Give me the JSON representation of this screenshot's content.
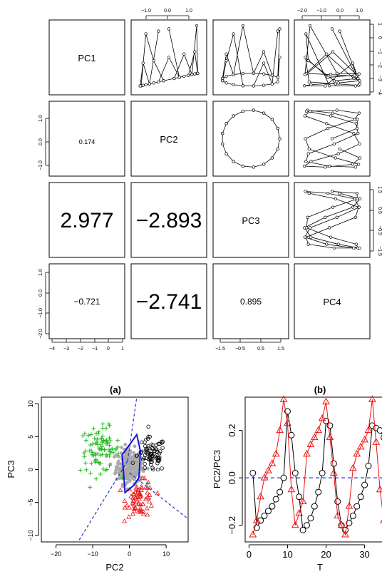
{
  "matrix": {
    "diag_labels": [
      "PC1",
      "PC2",
      "PC3",
      "PC4"
    ],
    "correlations": [
      {
        "row": 1,
        "col": 0,
        "text": "0.174",
        "size": 9
      },
      {
        "row": 2,
        "col": 0,
        "text": "2.977",
        "size": 30
      },
      {
        "row": 2,
        "col": 1,
        "text": "−2.893",
        "size": 30
      },
      {
        "row": 3,
        "col": 0,
        "text": "−0.721",
        "size": 12
      },
      {
        "row": 3,
        "col": 1,
        "text": "−2.741",
        "size": 30
      },
      {
        "row": 3,
        "col": 2,
        "text": "0.895",
        "size": 12
      }
    ],
    "top_axis_col1": [
      "−1.0",
      "0.0",
      "1.0"
    ],
    "top_axis_col3": [
      "−2.0",
      "−1.0",
      "0.0",
      "1.0"
    ],
    "right_axis_row0": [
      "1",
      "0",
      "−1",
      "−2",
      "−3",
      "−4"
    ],
    "right_axis_row2": [
      "1.5",
      "0.5",
      "−0.5",
      "−1.5"
    ],
    "left_axis_row1": [
      "1.0",
      "0.0",
      "−1.0"
    ],
    "left_axis_row3": [
      "1.0",
      "0.0",
      "−1.0",
      "−2.0"
    ],
    "bottom_axis_col0": [
      "−4",
      "−3",
      "−2",
      "−1",
      "0",
      "1"
    ],
    "bottom_axis_col2": [
      "−1.5",
      "−0.5",
      "0.5",
      "1.5"
    ]
  },
  "chart_data": [
    {
      "type": "scatter",
      "title": "(a)",
      "xlabel": "PC2",
      "ylabel": "PC3",
      "xlim": [
        -24,
        16
      ],
      "ylim": [
        -11,
        11
      ],
      "xticks": [
        "−20",
        "−10",
        "0",
        "10"
      ],
      "yticks": [
        "10",
        "5",
        "0",
        "−5",
        "−10"
      ],
      "groups": [
        {
          "marker": "plus",
          "color": "#22bb22",
          "n": 90,
          "center": [
            -8,
            3.0
          ],
          "spread": [
            4.5,
            2.8
          ]
        },
        {
          "marker": "circle",
          "color": "#000000",
          "n": 80,
          "center": [
            6,
            2.2
          ],
          "spread": [
            3.2,
            2.2
          ]
        },
        {
          "marker": "triangle",
          "color": "#ee1111",
          "n": 70,
          "center": [
            3,
            -4.5
          ],
          "spread": [
            3.2,
            2.2
          ]
        },
        {
          "marker": "dot",
          "color": "#aaaaaa",
          "n": 260,
          "center": [
            0,
            0.5
          ],
          "spread": [
            3.0,
            2.2
          ]
        }
      ],
      "hull_color": "#1111dd",
      "boundary_color": "#2233cc"
    },
    {
      "type": "line",
      "title": "(b)",
      "xlabel": "T",
      "ylabel": "PC2/PC3",
      "xlim": [
        -1,
        36
      ],
      "ylim": [
        -0.27,
        0.34
      ],
      "xticks": [
        "0",
        "10",
        "20",
        "30"
      ],
      "yticks": [
        "0.2",
        "0.0",
        "−0.2"
      ],
      "series": [
        {
          "marker": "circle",
          "color": "#000000",
          "x": [
            1,
            2,
            3,
            4,
            5,
            6,
            7,
            8,
            9,
            10,
            11,
            12,
            13,
            14,
            15,
            16,
            17,
            18,
            19,
            20,
            21,
            22,
            23,
            24,
            25,
            26,
            27,
            28,
            29,
            30,
            31,
            32,
            33,
            34,
            35
          ],
          "values": [
            0.02,
            -0.21,
            -0.18,
            -0.16,
            -0.14,
            -0.12,
            -0.09,
            -0.06,
            0.0,
            0.28,
            0.18,
            0.02,
            -0.08,
            -0.22,
            -0.2,
            -0.17,
            -0.12,
            -0.06,
            0.02,
            0.24,
            0.22,
            0.06,
            -0.1,
            -0.2,
            -0.22,
            -0.19,
            -0.16,
            -0.12,
            -0.08,
            -0.03,
            0.05,
            0.22,
            0.21,
            0.2,
            0.17
          ]
        },
        {
          "marker": "triangle",
          "color": "#ee1111",
          "x": [
            1,
            2,
            3,
            4,
            5,
            6,
            7,
            8,
            9,
            10,
            11,
            12,
            13,
            14,
            15,
            16,
            17,
            18,
            19,
            20,
            21,
            22,
            23,
            24,
            25,
            26,
            27,
            28,
            29,
            30,
            31,
            32,
            33,
            34,
            35
          ],
          "values": [
            -0.24,
            -0.18,
            -0.08,
            0.0,
            0.03,
            0.06,
            0.1,
            0.2,
            0.33,
            0.23,
            -0.05,
            -0.2,
            -0.15,
            -0.1,
            0.1,
            0.14,
            0.17,
            0.2,
            0.25,
            0.32,
            0.17,
            0.02,
            -0.16,
            -0.2,
            -0.24,
            -0.12,
            0.04,
            0.1,
            0.13,
            0.16,
            0.2,
            0.33,
            0.15,
            -0.05,
            -0.18
          ]
        }
      ],
      "reference_line": {
        "y": 0.0,
        "color": "#2233cc",
        "style": "dashed"
      }
    }
  ]
}
